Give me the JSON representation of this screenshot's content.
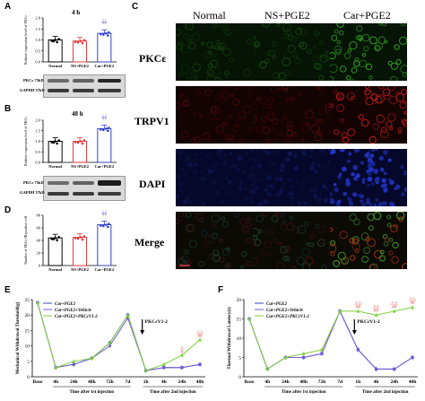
{
  "panels": {
    "a": {
      "label": "A",
      "time": "4 h",
      "ylabel": "Relative expression level of PKCε",
      "yticks": [
        "0.0",
        "0.5",
        "1.0",
        "1.5",
        "2.0"
      ],
      "categories": [
        "Normal",
        "NS+PGE2",
        "Car+PGE2"
      ],
      "values": [
        1.0,
        0.95,
        1.3
      ],
      "sig": "**",
      "sig2": "△△",
      "blot1": "PKCε 75kD",
      "blot2": "GAPDH 37kD"
    },
    "b": {
      "label": "B",
      "time": "48 h",
      "ylabel": "Relative expression level of PKCε",
      "yticks": [
        "0.0",
        "0.5",
        "1.0",
        "1.5",
        "2.0"
      ],
      "categories": [
        "Normal",
        "NS+PGE2",
        "Car+PGE2"
      ],
      "values": [
        1.0,
        1.0,
        1.6
      ],
      "sig": "**",
      "sig2": "△△",
      "blot1": "PKCε 75kD",
      "blot2": "GAPDH 37kD"
    },
    "d": {
      "label": "D",
      "ylabel": "Number of PKCε-IR positive cell",
      "yticks": [
        "0",
        "20",
        "40",
        "60",
        "80"
      ],
      "categories": [
        "Normal",
        "NS+PGE2",
        "Car+PGE2"
      ],
      "values": [
        44,
        45,
        65
      ],
      "sig": "**",
      "sig2": "△△"
    },
    "c": {
      "label": "C",
      "cols": [
        "Normal",
        "NS+PGE2",
        "Car+PGE2"
      ],
      "rows": [
        "PKCε",
        "TRPV1",
        "DAPI",
        "Merge"
      ]
    },
    "e": {
      "label": "E",
      "ylabel": "Mechanical Withdrawal Threshold(g)",
      "legend": [
        "Car+PGE2",
        "Car+PGE2+Vehicle",
        "Car+PGE2+PKCεV1-2"
      ],
      "annot": "PKCεV1-2",
      "xticks": [
        "Base",
        "4h",
        "24h",
        "48h",
        "72h",
        "7d",
        "1h",
        "4h",
        "24h",
        "48h"
      ],
      "yticks": [
        "0",
        "5",
        "10",
        "15",
        "20",
        "25"
      ],
      "xcap1": "Time after 1st injection",
      "xcap2": "Time after 2nd injection",
      "sigmarks": [
        "△",
        "#",
        "△△",
        "##"
      ]
    },
    "f": {
      "label": "F",
      "ylabel": "Thermal Withdrawal Latency(s)",
      "legend": [
        "Car+PGE2",
        "Car+PGE2+Vehicle",
        "Car+PGE2+PKCεV1-2"
      ],
      "annot": "PKCεV1-2",
      "xticks": [
        "Base",
        "4h",
        "24h",
        "48h",
        "72h",
        "7d",
        "1h",
        "4h",
        "24h",
        "48h"
      ],
      "yticks": [
        "0",
        "5",
        "10",
        "15",
        "20"
      ],
      "xcap1": "Time after 1st injection",
      "xcap2": "Time after 2nd injection",
      "sigmarks": [
        "△△",
        "##",
        "△△",
        "##",
        "△△",
        "##",
        "△△",
        "##"
      ]
    }
  },
  "chart_data": [
    {
      "type": "bar",
      "panel": "A",
      "categories": [
        "Normal",
        "NS+PGE2",
        "Car+PGE2"
      ],
      "values": [
        1.0,
        0.95,
        1.3
      ],
      "ylim": [
        0,
        2.0
      ],
      "ylabel": "Relative expression level of PKCε"
    },
    {
      "type": "bar",
      "panel": "B",
      "categories": [
        "Normal",
        "NS+PGE2",
        "Car+PGE2"
      ],
      "values": [
        1.0,
        1.0,
        1.6
      ],
      "ylim": [
        0,
        2.0
      ],
      "ylabel": "Relative expression level of PKCε"
    },
    {
      "type": "bar",
      "panel": "D",
      "categories": [
        "Normal",
        "NS+PGE2",
        "Car+PGE2"
      ],
      "values": [
        44,
        45,
        65
      ],
      "ylim": [
        0,
        80
      ],
      "ylabel": "Number of PKCε-IR positive cell"
    },
    {
      "type": "line",
      "panel": "E",
      "x": [
        "Base",
        "4h",
        "24h",
        "48h",
        "72h",
        "7d",
        "1h",
        "4h",
        "24h",
        "48h"
      ],
      "ylim": [
        0,
        25
      ],
      "ylabel": "Mechanical Withdrawal Threshold(g)",
      "series": [
        {
          "name": "Car+PGE2",
          "values": [
            24,
            3,
            4,
            6,
            11,
            20,
            2,
            3,
            3,
            4
          ]
        },
        {
          "name": "Car+PGE2+Vehicle",
          "values": [
            24,
            3,
            4,
            6,
            10,
            19,
            2,
            3,
            3,
            4
          ]
        },
        {
          "name": "Car+PGE2+PKCεV1-2",
          "values": [
            24,
            3,
            5,
            6,
            11,
            20,
            2,
            4,
            7,
            12
          ]
        }
      ]
    },
    {
      "type": "line",
      "panel": "F",
      "x": [
        "Base",
        "4h",
        "24h",
        "48h",
        "72h",
        "7d",
        "1h",
        "4h",
        "24h",
        "48h"
      ],
      "ylim": [
        0,
        20
      ],
      "ylabel": "Thermal Withdrawal Latency(s)",
      "series": [
        {
          "name": "Car+PGE2",
          "values": [
            15,
            2,
            5,
            5,
            6,
            17,
            7,
            2,
            2,
            5
          ]
        },
        {
          "name": "Car+PGE2+Vehicle",
          "values": [
            15,
            2,
            5,
            5,
            6,
            17,
            7,
            2,
            2,
            5
          ]
        },
        {
          "name": "Car+PGE2+PKCεV1-2",
          "values": [
            15,
            2,
            5,
            6,
            7,
            17,
            17,
            16,
            17,
            18
          ]
        }
      ]
    }
  ],
  "colors": {
    "green": "#7fd13b",
    "purple": "#7b5bd6",
    "blue": "#3344cc",
    "red": "#e23b3b",
    "micgreen": "#1f6b1a",
    "micred": "#8a1010",
    "micblue": "#1a2a9a"
  }
}
